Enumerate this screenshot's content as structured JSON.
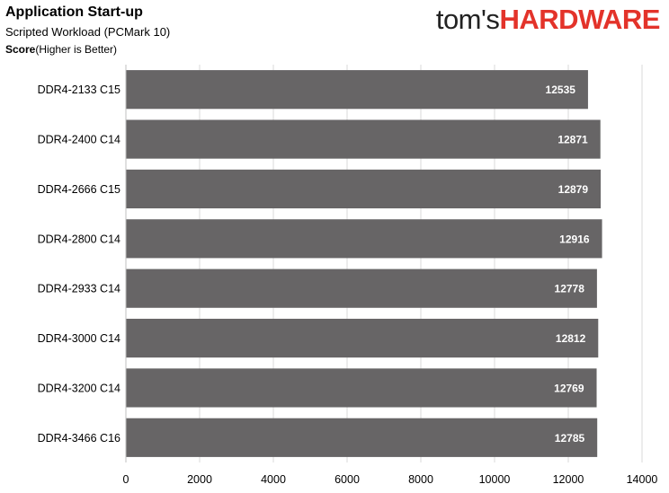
{
  "title": "Application Start-up",
  "subtitle": "Scripted Workload  (PCMark 10)",
  "score_label": "Score",
  "score_note": "(Higher is Better)",
  "logo": {
    "part1": "tom's",
    "part2": "HARDWARE",
    "colors": {
      "part1": "#222222",
      "part2": "#e3332a"
    }
  },
  "colors": {
    "bar": "#676566",
    "grid": "#d9d9d9",
    "bar_label": "#ffffff"
  },
  "chart_data": {
    "type": "bar",
    "orientation": "horizontal",
    "categories": [
      "DDR4-2133 C15",
      "DDR4-2400 C14",
      "DDR4-2666 C15",
      "DDR4-2800 C14",
      "DDR4-2933 C14",
      "DDR4-3000 C14",
      "DDR4-3200 C14",
      "DDR4-3466 C16"
    ],
    "values": [
      12535,
      12871,
      12879,
      12916,
      12778,
      12812,
      12769,
      12785
    ],
    "xlim": [
      0,
      14000
    ],
    "xticks": [
      0,
      2000,
      4000,
      6000,
      8000,
      10000,
      12000,
      14000
    ],
    "grid": true,
    "data_labels": true
  }
}
